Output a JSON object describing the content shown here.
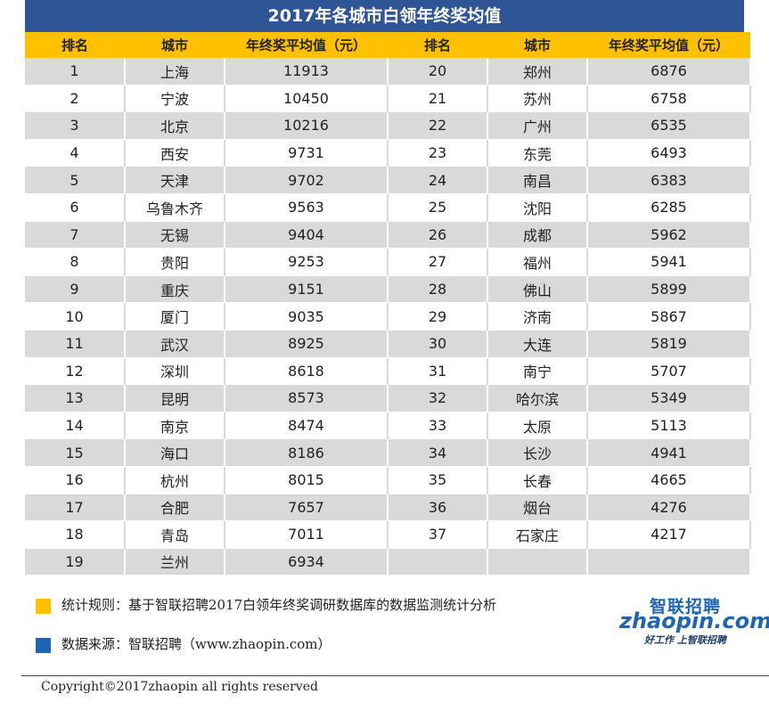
{
  "chart_data": {
    "type": "table",
    "title": "2017年各城市白领年终奖均值",
    "headers": [
      "排名",
      "城市",
      "年终奖平均值（元）",
      "排名",
      "城市",
      "年终奖平均值（元）"
    ],
    "rows": [
      {
        "rank": "1",
        "city": "上海",
        "value": "11913"
      },
      {
        "rank": "2",
        "city": "宁波",
        "value": "10450"
      },
      {
        "rank": "3",
        "city": "北京",
        "value": "10216"
      },
      {
        "rank": "4",
        "city": "西安",
        "value": "9731"
      },
      {
        "rank": "5",
        "city": "天津",
        "value": "9702"
      },
      {
        "rank": "6",
        "city": "乌鲁木齐",
        "value": "9563"
      },
      {
        "rank": "7",
        "city": "无锡",
        "value": "9404"
      },
      {
        "rank": "8",
        "city": "贵阳",
        "value": "9253"
      },
      {
        "rank": "9",
        "city": "重庆",
        "value": "9151"
      },
      {
        "rank": "10",
        "city": "厦门",
        "value": "9035"
      },
      {
        "rank": "11",
        "city": "武汉",
        "value": "8925"
      },
      {
        "rank": "12",
        "city": "深圳",
        "value": "8618"
      },
      {
        "rank": "13",
        "city": "昆明",
        "value": "8573"
      },
      {
        "rank": "14",
        "city": "南京",
        "value": "8474"
      },
      {
        "rank": "15",
        "city": "海口",
        "value": "8186"
      },
      {
        "rank": "16",
        "city": "杭州",
        "value": "8015"
      },
      {
        "rank": "17",
        "city": "合肥",
        "value": "7657"
      },
      {
        "rank": "18",
        "city": "青岛",
        "value": "7011"
      },
      {
        "rank": "19",
        "city": "兰州",
        "value": "6934"
      },
      {
        "rank": "20",
        "city": "郑州",
        "value": "6876"
      },
      {
        "rank": "21",
        "city": "苏州",
        "value": "6758"
      },
      {
        "rank": "22",
        "city": "广州",
        "value": "6535"
      },
      {
        "rank": "23",
        "city": "东莞",
        "value": "6493"
      },
      {
        "rank": "24",
        "city": "南昌",
        "value": "6383"
      },
      {
        "rank": "25",
        "city": "沈阳",
        "value": "6285"
      },
      {
        "rank": "26",
        "city": "成都",
        "value": "5962"
      },
      {
        "rank": "27",
        "city": "福州",
        "value": "5941"
      },
      {
        "rank": "28",
        "city": "佛山",
        "value": "5899"
      },
      {
        "rank": "29",
        "city": "济南",
        "value": "5867"
      },
      {
        "rank": "30",
        "city": "大连",
        "value": "5819"
      },
      {
        "rank": "31",
        "city": "南宁",
        "value": "5707"
      },
      {
        "rank": "32",
        "city": "哈尔滨",
        "value": "5349"
      },
      {
        "rank": "33",
        "city": "太原",
        "value": "5113"
      },
      {
        "rank": "34",
        "city": "长沙",
        "value": "4941"
      },
      {
        "rank": "35",
        "city": "长春",
        "value": "4665"
      },
      {
        "rank": "36",
        "city": "烟台",
        "value": "4276"
      },
      {
        "rank": "37",
        "city": "石家庄",
        "value": "4217"
      }
    ]
  },
  "footer": {
    "rule_text": "统计规则：基于智联招聘2017白领年终奖调研数据库的数据监测统计分析",
    "source_text": "数据来源：智联招聘（www.zhaopin.com）",
    "copyright": "Copyright©2017zhaopin all rights reserved"
  },
  "logo": {
    "chinese": "智联招聘",
    "latin": "zhaopin.com",
    "slogan": "好工作 上智联招聘"
  },
  "colors": {
    "title_bg": "#2f5597",
    "header_bg": "#ffc000",
    "row_shade": "#d9d9d9",
    "rule_square": "#ffc000",
    "source_square": "#1f66b1",
    "logo_blue": "#1f66b1",
    "logo_orange": "#f39800"
  }
}
